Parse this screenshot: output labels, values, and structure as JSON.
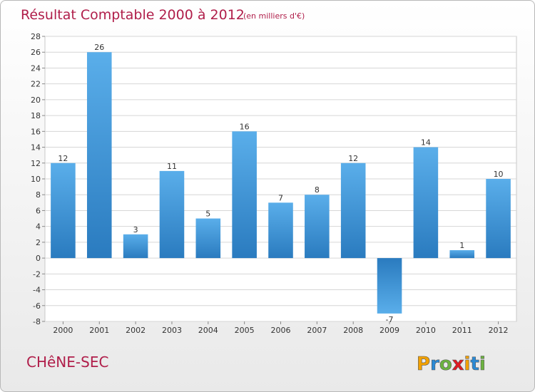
{
  "title": "Résultat Comptable 2000 à 2012",
  "subtitle": "(en milliers d'€)",
  "commune": "CHêNE-SEC",
  "brand": {
    "letters": [
      "P",
      "r",
      "o",
      "x",
      "i",
      "t",
      "i"
    ],
    "colors": [
      "#f2a100",
      "#2a8ad6",
      "#6cb33f",
      "#e11b22",
      "#f2a100",
      "#2a8ad6",
      "#6cb33f"
    ]
  },
  "colors": {
    "title": "#b01e4a",
    "bar_light": "#5aaeea",
    "bar_dark": "#2a7bbf",
    "plot_bg": "#ffffff",
    "grid": "#d6d6d6"
  },
  "chart_data": {
    "type": "bar",
    "title": "Résultat Comptable 2000 à 2012",
    "subtitle": "(en milliers d'€)",
    "categories": [
      "2000",
      "2001",
      "2002",
      "2003",
      "2004",
      "2005",
      "2006",
      "2007",
      "2008",
      "2009",
      "2010",
      "2011",
      "2012"
    ],
    "values": [
      12,
      26,
      3,
      11,
      5,
      16,
      7,
      8,
      12,
      -7,
      14,
      1,
      10
    ],
    "ylim": [
      -8,
      28
    ],
    "yticks": [
      -8,
      -6,
      -4,
      -2,
      0,
      2,
      4,
      6,
      8,
      10,
      12,
      14,
      16,
      18,
      20,
      22,
      24,
      26,
      28
    ],
    "grid": true,
    "data_labels": true
  }
}
